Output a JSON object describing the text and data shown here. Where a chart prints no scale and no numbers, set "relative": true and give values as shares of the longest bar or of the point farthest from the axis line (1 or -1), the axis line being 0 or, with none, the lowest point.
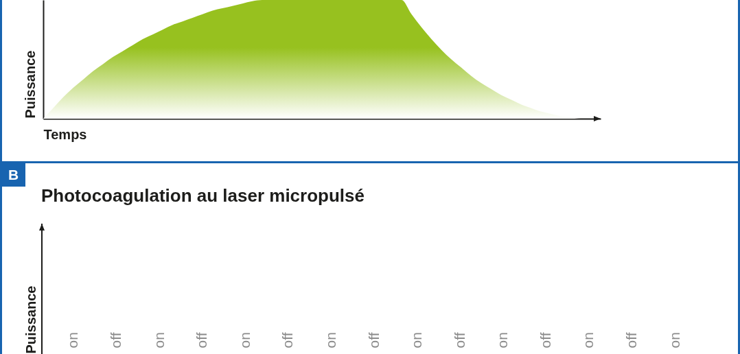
{
  "chart_data": [
    {
      "type": "area",
      "xlabel": "Temps",
      "ylabel": "Puissance",
      "relative": true,
      "color": "#97c11f",
      "categories": [
        null,
        null,
        null,
        null,
        null,
        null,
        null,
        null,
        null,
        null,
        null,
        null,
        null,
        null,
        null,
        null,
        null,
        null,
        null,
        null,
        null,
        null,
        null,
        null,
        null,
        null,
        null,
        null,
        null,
        null,
        null,
        null,
        null,
        null,
        null,
        null,
        null,
        null,
        null,
        null,
        null,
        null,
        null,
        null,
        null,
        null,
        null,
        null,
        null,
        null,
        null,
        null,
        null,
        null,
        null,
        null,
        null
      ],
      "values": [
        0,
        0.09,
        0.18,
        0.26,
        0.33,
        0.4,
        0.46,
        0.52,
        0.57,
        0.62,
        0.67,
        0.71,
        0.75,
        0.79,
        0.82,
        0.85,
        0.88,
        0.91,
        0.93,
        0.95,
        0.97,
        0.99,
        1,
        1,
        1,
        1,
        1,
        1,
        1,
        1,
        1,
        1,
        1,
        1,
        1,
        1,
        1,
        0.88,
        0.77,
        0.67,
        0.58,
        0.5,
        0.43,
        0.36,
        0.3,
        0.25,
        0.2,
        0.16,
        0.12,
        0.09,
        0.06,
        0.04,
        0.02,
        0.01,
        0,
        0,
        0
      ]
    },
    {
      "type": "other",
      "title": "Photocoagulation au laser micropulsé",
      "ylabel": "Puissance",
      "annotations": [
        "B"
      ],
      "categories": [
        "on",
        "off",
        "on",
        "off",
        "on",
        "off",
        "on",
        "off",
        "on",
        "off",
        "on",
        "off",
        "on",
        "off",
        "on"
      ]
    }
  ]
}
